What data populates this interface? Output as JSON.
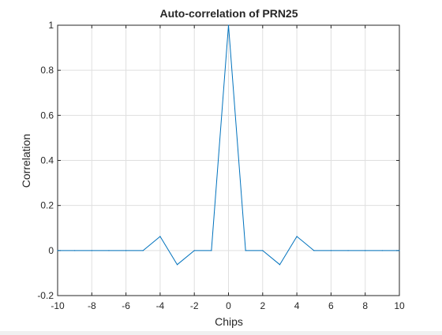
{
  "chart_data": {
    "type": "line",
    "title": "Auto-correlation of PRN25",
    "xlabel": "Chips",
    "ylabel": "Correlation",
    "xlim": [
      -10,
      10
    ],
    "ylim": [
      -0.2,
      1
    ],
    "xticks": [
      -10,
      -8,
      -6,
      -4,
      -2,
      0,
      2,
      4,
      6,
      8,
      10
    ],
    "yticks": [
      -0.2,
      0,
      0.2,
      0.4,
      0.6,
      0.8,
      1
    ],
    "grid": true,
    "series": [
      {
        "color": "#0072bd",
        "x": [
          -10,
          -9,
          -8,
          -7,
          -6,
          -5,
          -4,
          -3,
          -2,
          -1,
          0,
          1,
          2,
          3,
          4,
          5,
          6,
          7,
          8,
          9,
          10
        ],
        "y": [
          0,
          0,
          0,
          0,
          0,
          0,
          0.0625,
          -0.0625,
          0,
          0,
          1,
          0,
          0,
          -0.0625,
          0.0625,
          0,
          0,
          0,
          0,
          0,
          0
        ]
      }
    ]
  }
}
